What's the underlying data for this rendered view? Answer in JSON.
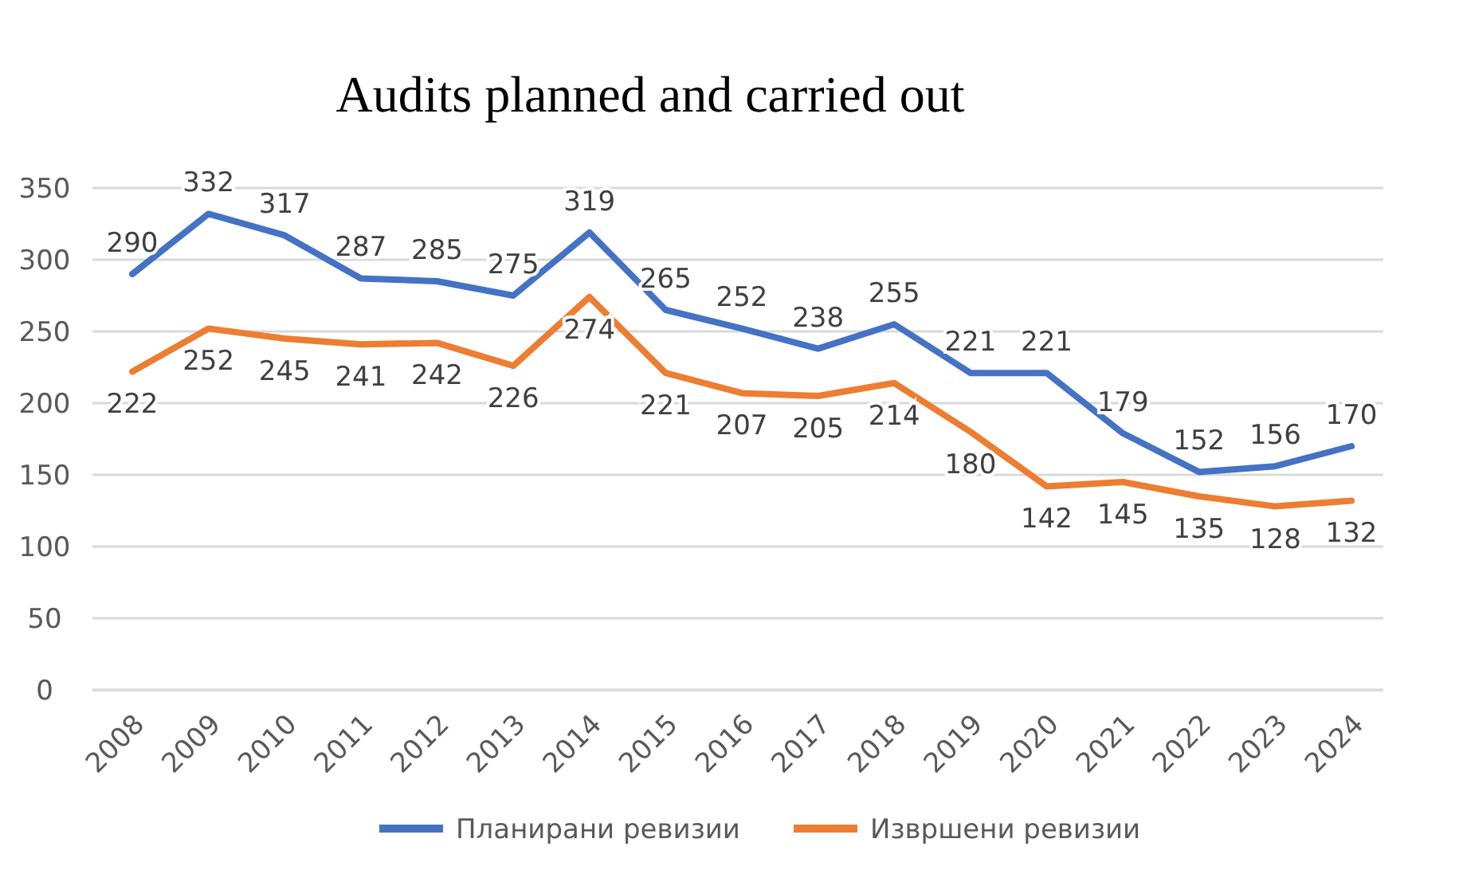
{
  "chart_data": {
    "type": "line",
    "title": "Audits planned and carried out",
    "categories": [
      "2008",
      "2009",
      "2010",
      "2011",
      "2012",
      "2013",
      "2014",
      "2015",
      "2016",
      "2017",
      "2018",
      "2019",
      "2020",
      "2021",
      "2022",
      "2023",
      "2024"
    ],
    "series": [
      {
        "name": "Планирани ревизии",
        "color": "#4472c4",
        "values": [
          290,
          332,
          317,
          287,
          285,
          275,
          319,
          265,
          252,
          238,
          255,
          221,
          221,
          179,
          152,
          156,
          170
        ]
      },
      {
        "name": "Извршени ревизии",
        "color": "#ed7d31",
        "values": [
          222,
          252,
          245,
          241,
          242,
          226,
          274,
          221,
          207,
          205,
          214,
          180,
          142,
          145,
          135,
          128,
          132
        ]
      }
    ],
    "ylim": [
      0,
      350
    ],
    "yticks": [
      0,
      50,
      100,
      150,
      200,
      250,
      300,
      350
    ],
    "grid": "y",
    "legend": "bottom",
    "data_labels": true,
    "marker": "none",
    "line_style": "solid"
  }
}
